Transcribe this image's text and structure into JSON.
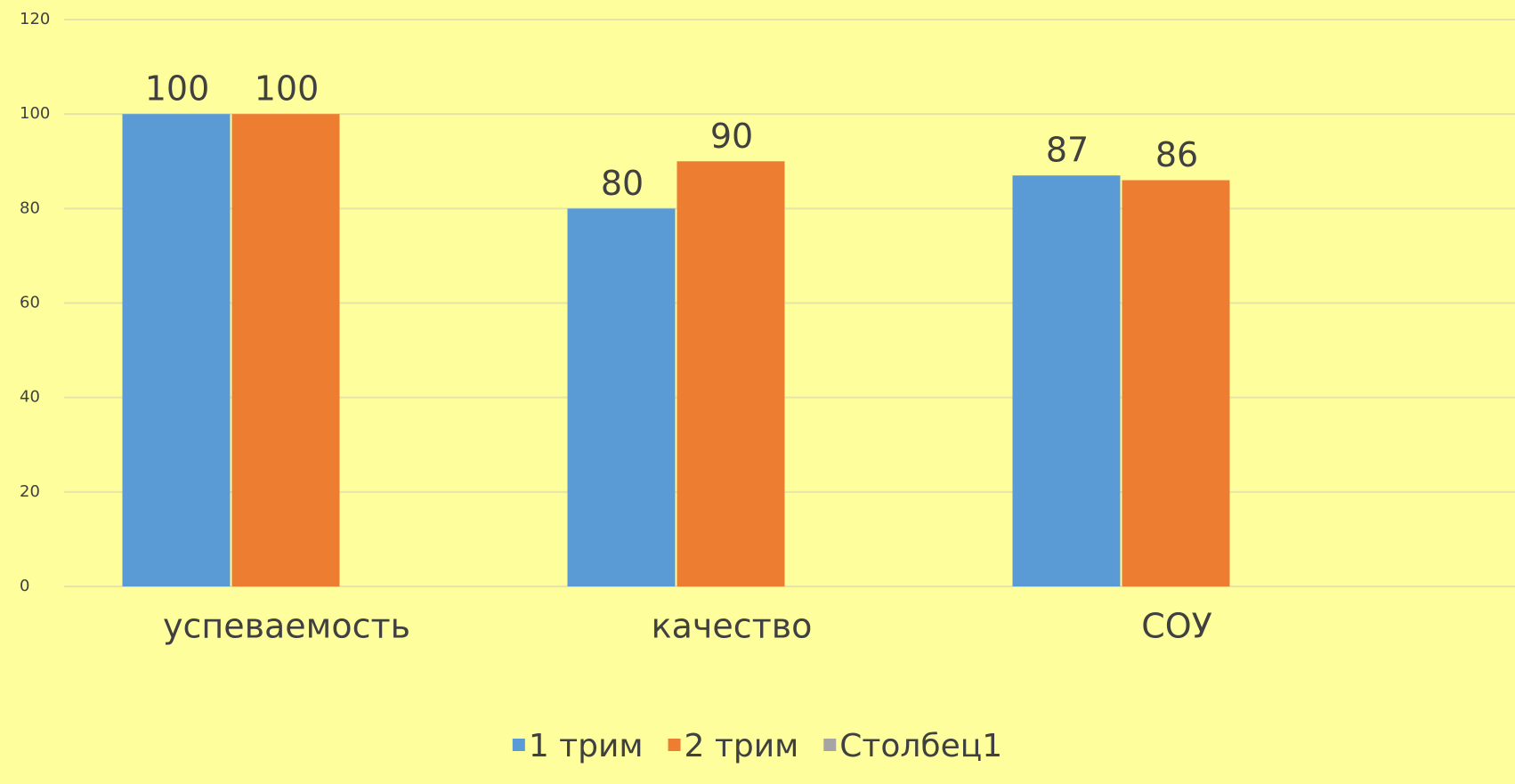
{
  "chart_data": {
    "type": "bar",
    "categories": [
      "успеваемость",
      "качество",
      "СОУ"
    ],
    "series": [
      {
        "name": "1 трим",
        "color": "#5b9bd5",
        "values": [
          100,
          80,
          87
        ]
      },
      {
        "name": "2 трим",
        "color": "#ed7d31",
        "values": [
          100,
          90,
          86
        ]
      },
      {
        "name": "Столбец1",
        "color": "#a5a5a5",
        "values": [
          null,
          null,
          null
        ]
      }
    ],
    "ylim": [
      0,
      120
    ],
    "yticks": [
      0,
      20,
      40,
      60,
      80,
      100,
      120
    ],
    "grid": true,
    "legend": "bottom"
  }
}
